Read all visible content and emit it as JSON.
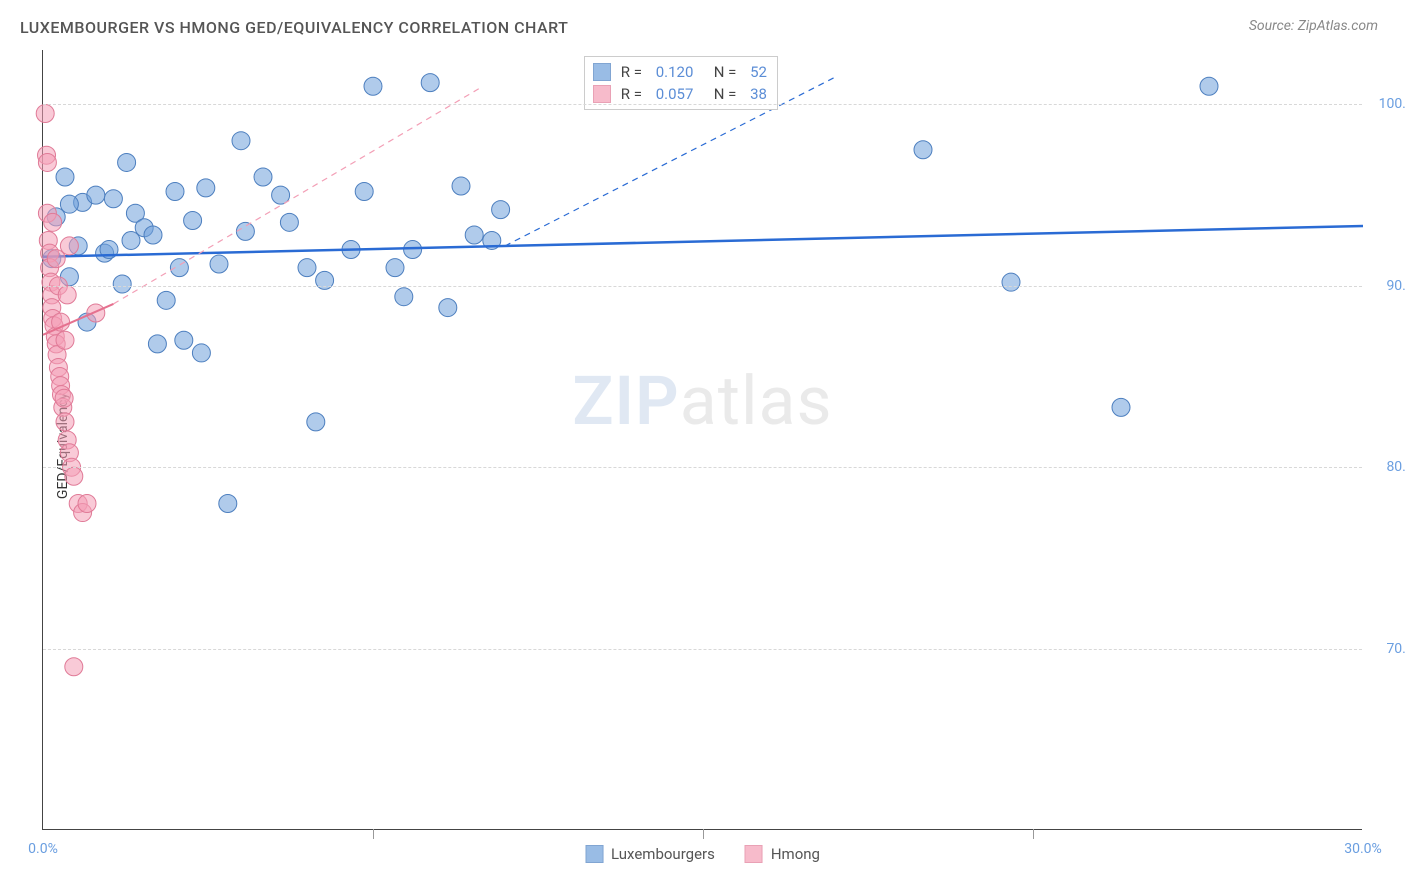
{
  "title": "LUXEMBOURGER VS HMONG GED/EQUIVALENCY CORRELATION CHART",
  "source": "Source: ZipAtlas.com",
  "ylabel": "GED/Equivalency",
  "watermark": {
    "zip": "ZIP",
    "atlas": "atlas"
  },
  "chart": {
    "type": "scatter",
    "xlim": [
      0,
      30
    ],
    "ylim": [
      60,
      103
    ],
    "ytick_step": 10,
    "yticks": [
      70,
      80,
      90,
      100
    ],
    "xticks": [
      0,
      30
    ],
    "xtick_minor": [
      7.5,
      15,
      22.5
    ],
    "grid_color": "#d8d8d8",
    "background_color": "#ffffff",
    "marker_radius": 9,
    "marker_opacity": 0.55,
    "series": [
      {
        "name": "Luxembourgers",
        "color": "#6fa0db",
        "stroke": "#4d7fbf",
        "R": "0.120",
        "N": "52",
        "trend": {
          "x1": 0,
          "y1": 91.6,
          "x2": 30,
          "y2": 93.3,
          "color": "#2a6bd4",
          "width": 2.5,
          "dash": "0"
        },
        "trend_ext": {
          "x1": 10.5,
          "y1": 92.2,
          "x2": 18,
          "y2": 101.5,
          "color": "#2a6bd4",
          "width": 1.2,
          "dash": "6 5"
        },
        "points": [
          [
            0.2,
            91.5
          ],
          [
            0.3,
            93.8
          ],
          [
            0.5,
            96.0
          ],
          [
            0.6,
            90.5
          ],
          [
            0.8,
            92.2
          ],
          [
            0.9,
            94.6
          ],
          [
            1.0,
            88.0
          ],
          [
            1.2,
            95.0
          ],
          [
            1.4,
            91.8
          ],
          [
            1.6,
            94.8
          ],
          [
            1.8,
            90.1
          ],
          [
            1.9,
            96.8
          ],
          [
            2.0,
            92.5
          ],
          [
            2.1,
            94.0
          ],
          [
            2.3,
            93.2
          ],
          [
            2.6,
            86.8
          ],
          [
            2.8,
            89.2
          ],
          [
            3.0,
            95.2
          ],
          [
            3.2,
            87.0
          ],
          [
            3.4,
            93.6
          ],
          [
            3.7,
            95.4
          ],
          [
            4.0,
            91.2
          ],
          [
            4.5,
            98.0
          ],
          [
            4.6,
            93.0
          ],
          [
            5.0,
            96.0
          ],
          [
            5.4,
            95.0
          ],
          [
            5.6,
            93.5
          ],
          [
            6.0,
            91.0
          ],
          [
            6.2,
            82.5
          ],
          [
            6.4,
            90.3
          ],
          [
            7.0,
            92.0
          ],
          [
            7.3,
            95.2
          ],
          [
            7.5,
            101.0
          ],
          [
            8.0,
            91.0
          ],
          [
            8.2,
            89.4
          ],
          [
            8.4,
            92.0
          ],
          [
            8.8,
            101.2
          ],
          [
            9.2,
            88.8
          ],
          [
            9.5,
            95.5
          ],
          [
            9.8,
            92.8
          ],
          [
            10.2,
            92.5
          ],
          [
            10.4,
            94.2
          ],
          [
            3.6,
            86.3
          ],
          [
            4.2,
            78.0
          ],
          [
            20.0,
            97.5
          ],
          [
            22.0,
            90.2
          ],
          [
            24.5,
            83.3
          ],
          [
            26.5,
            101.0
          ],
          [
            0.6,
            94.5
          ],
          [
            1.5,
            92.0
          ],
          [
            2.5,
            92.8
          ],
          [
            3.1,
            91.0
          ]
        ]
      },
      {
        "name": "Hmong",
        "color": "#f49fb6",
        "stroke": "#e07a97",
        "R": "0.057",
        "N": "38",
        "trend": {
          "x1": 0,
          "y1": 87.3,
          "x2": 1.6,
          "y2": 89.0,
          "color": "#e5718f",
          "width": 2,
          "dash": "0"
        },
        "trend_ext": {
          "x1": 1.6,
          "y1": 89.0,
          "x2": 10,
          "y2": 101,
          "color": "#f39fb6",
          "width": 1.2,
          "dash": "6 5"
        },
        "points": [
          [
            0.05,
            99.5
          ],
          [
            0.08,
            97.2
          ],
          [
            0.1,
            96.8
          ],
          [
            0.1,
            94.0
          ],
          [
            0.12,
            92.5
          ],
          [
            0.15,
            91.8
          ],
          [
            0.15,
            91.0
          ],
          [
            0.18,
            90.2
          ],
          [
            0.2,
            89.5
          ],
          [
            0.2,
            88.8
          ],
          [
            0.22,
            88.2
          ],
          [
            0.22,
            93.5
          ],
          [
            0.25,
            87.8
          ],
          [
            0.28,
            87.2
          ],
          [
            0.3,
            86.8
          ],
          [
            0.3,
            91.5
          ],
          [
            0.32,
            86.2
          ],
          [
            0.35,
            85.5
          ],
          [
            0.35,
            90.0
          ],
          [
            0.38,
            85.0
          ],
          [
            0.4,
            84.5
          ],
          [
            0.4,
            88.0
          ],
          [
            0.42,
            84.0
          ],
          [
            0.45,
            83.3
          ],
          [
            0.48,
            83.8
          ],
          [
            0.5,
            82.5
          ],
          [
            0.5,
            87.0
          ],
          [
            0.55,
            81.5
          ],
          [
            0.6,
            80.8
          ],
          [
            0.65,
            80.0
          ],
          [
            0.55,
            89.5
          ],
          [
            0.7,
            79.5
          ],
          [
            0.8,
            78.0
          ],
          [
            0.9,
            77.5
          ],
          [
            0.6,
            92.2
          ],
          [
            1.0,
            78.0
          ],
          [
            0.7,
            69.0
          ],
          [
            1.2,
            88.5
          ]
        ]
      }
    ]
  },
  "legend": {
    "series1": "Luxembourgers",
    "series2": "Hmong"
  }
}
